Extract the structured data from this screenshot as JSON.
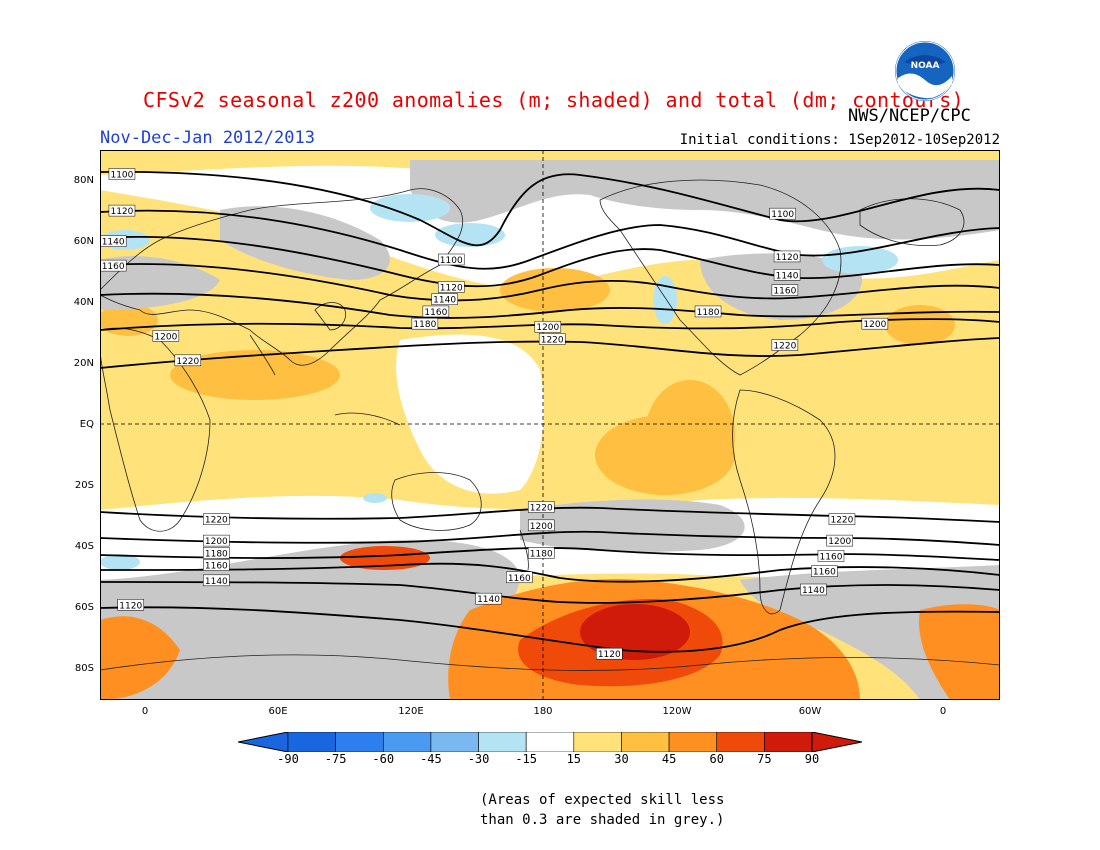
{
  "title": "CFSv2 seasonal z200 anomalies (m; shaded) and total (dm; contours)",
  "agency": "NWS/NCEP/CPC",
  "period": "Nov-Dec-Jan 2012/2013",
  "initial_conditions": "Initial conditions: 1Sep2012-10Sep2012",
  "logo_text": "NOAA",
  "latitude_labels": [
    "80N",
    "60N",
    "40N",
    "20N",
    "EQ",
    "20S",
    "40S",
    "60S",
    "80S"
  ],
  "longitude_labels": [
    "0",
    "60E",
    "120E",
    "180",
    "120W",
    "60W",
    "0"
  ],
  "colorbar": {
    "labels": [
      "-90",
      "-75",
      "-60",
      "-45",
      "-30",
      "-15",
      "15",
      "30",
      "45",
      "60",
      "75",
      "90"
    ],
    "colors": [
      "#1a66e0",
      "#2d7ff0",
      "#4a9af2",
      "#7ab8f2",
      "#b4e4f4",
      "#ffffff",
      "#ffe27a",
      "#ffbf40",
      "#ff8f20",
      "#f04a0a",
      "#d01a0a"
    ]
  },
  "colors": {
    "skill_grey": "#c8c8c8",
    "land_outline": "#222222",
    "contour": "#000000",
    "title_red": "#e60000",
    "period_blue": "#1f3fd6"
  },
  "contour_labels": [
    {
      "label": "1100",
      "lon": -10,
      "lat": 82
    },
    {
      "label": "1120",
      "lon": -10,
      "lat": 70
    },
    {
      "label": "1140",
      "lon": -14,
      "lat": 60
    },
    {
      "label": "1160",
      "lon": -14,
      "lat": 52
    },
    {
      "label": "1200",
      "lon": 10,
      "lat": 29
    },
    {
      "label": "1220",
      "lon": 20,
      "lat": 21
    },
    {
      "label": "1100",
      "lon": 140,
      "lat": 54
    },
    {
      "label": "1120",
      "lon": 140,
      "lat": 45
    },
    {
      "label": "1140",
      "lon": 137,
      "lat": 41
    },
    {
      "label": "1160",
      "lon": 133,
      "lat": 37
    },
    {
      "label": "1180",
      "lon": 128,
      "lat": 33
    },
    {
      "label": "1200",
      "lon": -176,
      "lat": 32
    },
    {
      "label": "1220",
      "lon": -174,
      "lat": 28
    },
    {
      "label": "1180",
      "lon": -103,
      "lat": 37
    },
    {
      "label": "1100",
      "lon": -69,
      "lat": 69
    },
    {
      "label": "1120",
      "lon": -67,
      "lat": 55
    },
    {
      "label": "1140",
      "lon": -67,
      "lat": 49
    },
    {
      "label": "1160",
      "lon": -68,
      "lat": 44
    },
    {
      "label": "1200",
      "lon": -27,
      "lat": 33
    },
    {
      "label": "1220",
      "lon": -68,
      "lat": 26
    },
    {
      "label": "1220",
      "lon": 33,
      "lat": -31
    },
    {
      "label": "1200",
      "lon": 33,
      "lat": -38
    },
    {
      "label": "1180",
      "lon": 33,
      "lat": -42
    },
    {
      "label": "1160",
      "lon": 33,
      "lat": -46
    },
    {
      "label": "1140",
      "lon": 33,
      "lat": -51
    },
    {
      "label": "1120",
      "lon": -6,
      "lat": -59
    },
    {
      "label": "1220",
      "lon": -179,
      "lat": -27
    },
    {
      "label": "1200",
      "lon": -179,
      "lat": -33
    },
    {
      "label": "1180",
      "lon": -179,
      "lat": -42
    },
    {
      "label": "1160",
      "lon": 171,
      "lat": -50
    },
    {
      "label": "1140",
      "lon": 157,
      "lat": -57
    },
    {
      "label": "1120",
      "lon": -148,
      "lat": -75
    },
    {
      "label": "1220",
      "lon": -42,
      "lat": -31
    },
    {
      "label": "1200",
      "lon": -43,
      "lat": -38
    },
    {
      "label": "1160",
      "lon": -47,
      "lat": -43
    },
    {
      "label": "1160",
      "lon": -50,
      "lat": -48
    },
    {
      "label": "1140",
      "lon": -55,
      "lat": -54
    }
  ],
  "note_line1": "(Areas of expected skill less",
  "note_line2": "than 0.3 are shaded in grey.)"
}
